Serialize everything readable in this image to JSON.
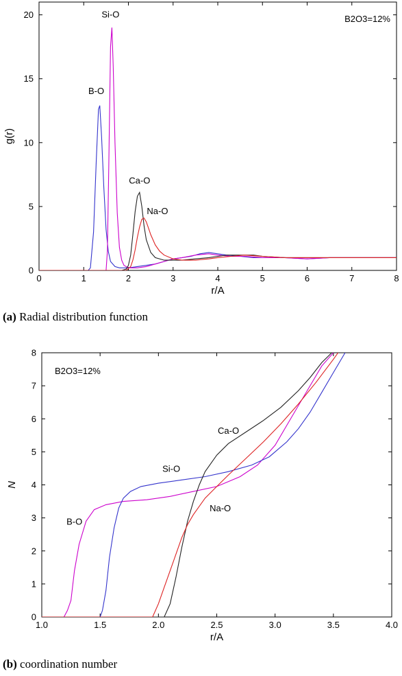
{
  "captions": {
    "a_label": "(a)",
    "a_text": "Radial distribution function",
    "b_label": "(b)",
    "b_text": "coordination number"
  },
  "chart_data": [
    {
      "type": "line",
      "title": "",
      "xlabel": "r/A",
      "ylabel": "g(r)",
      "xlim": [
        0,
        8
      ],
      "ylim": [
        0,
        21
      ],
      "xticks": [
        "0",
        "1",
        "2",
        "3",
        "4",
        "5",
        "6",
        "7",
        "8"
      ],
      "yticks": [
        "0",
        "5",
        "10",
        "15",
        "20"
      ],
      "xtick_values": [
        0,
        1,
        2,
        3,
        4,
        5,
        6,
        7,
        8
      ],
      "ytick_values": [
        0,
        5,
        10,
        15,
        20
      ],
      "grid": false,
      "annotation_box": "B2O3=12%",
      "series": [
        {
          "name": "B-O",
          "color": "#3333cc",
          "x": [
            0,
            1.1,
            1.15,
            1.22,
            1.28,
            1.33,
            1.36,
            1.4,
            1.45,
            1.5,
            1.55,
            1.6,
            1.7,
            1.8,
            2.0,
            2.2,
            2.4,
            2.6,
            2.8,
            3.0,
            3.2,
            3.4,
            3.6,
            3.8,
            4.0,
            4.2,
            4.5,
            4.8,
            5.0,
            5.5,
            6.0,
            6.5,
            7.0,
            7.5,
            8.0
          ],
          "y": [
            0,
            0,
            0.2,
            3.0,
            8.5,
            12.6,
            12.9,
            10.5,
            6.5,
            3.2,
            1.5,
            0.7,
            0.3,
            0.2,
            0.2,
            0.3,
            0.4,
            0.5,
            0.7,
            0.9,
            1.0,
            1.1,
            1.3,
            1.4,
            1.3,
            1.2,
            1.1,
            1.0,
            1.0,
            1.0,
            0.9,
            1.0,
            1.0,
            1.0,
            1.0
          ]
        },
        {
          "name": "Si-O",
          "color": "#cc00cc",
          "x": [
            0,
            1.5,
            1.53,
            1.56,
            1.6,
            1.63,
            1.66,
            1.7,
            1.75,
            1.8,
            1.85,
            1.9,
            2.0,
            2.2,
            2.4,
            2.6,
            2.8,
            3.0,
            3.2,
            3.5,
            3.8,
            4.0,
            4.3,
            4.6,
            5.0,
            5.5,
            6.0,
            6.5,
            7.0,
            7.5,
            8.0
          ],
          "y": [
            0,
            0,
            1.5,
            8.0,
            17.5,
            19.0,
            16.0,
            10.0,
            4.5,
            1.8,
            0.8,
            0.4,
            0.2,
            0.2,
            0.3,
            0.5,
            0.7,
            0.9,
            1.0,
            1.2,
            1.3,
            1.2,
            1.1,
            1.1,
            1.0,
            1.0,
            0.9,
            1.0,
            1.0,
            1.0,
            1.0
          ]
        },
        {
          "name": "Ca-O",
          "color": "#222222",
          "x": [
            0,
            1.85,
            1.95,
            2.0,
            2.05,
            2.1,
            2.15,
            2.2,
            2.25,
            2.3,
            2.35,
            2.4,
            2.5,
            2.6,
            2.8,
            3.0,
            3.2,
            3.5,
            3.8,
            4.0,
            4.2,
            4.5,
            4.8,
            5.0,
            5.5,
            6.0,
            6.5,
            7.0,
            7.5,
            8.0
          ],
          "y": [
            0,
            0,
            0.1,
            0.4,
            1.2,
            2.8,
            4.6,
            5.8,
            6.1,
            5.0,
            3.5,
            2.4,
            1.4,
            1.0,
            0.8,
            0.8,
            0.8,
            0.9,
            1.0,
            1.1,
            1.2,
            1.2,
            1.2,
            1.1,
            1.0,
            1.0,
            1.0,
            1.0,
            1.0,
            1.0
          ]
        },
        {
          "name": "Na-O",
          "color": "#dd2222",
          "x": [
            0,
            1.95,
            2.05,
            2.1,
            2.15,
            2.2,
            2.25,
            2.3,
            2.35,
            2.4,
            2.45,
            2.5,
            2.6,
            2.7,
            2.8,
            3.0,
            3.2,
            3.5,
            3.8,
            4.0,
            4.3,
            4.6,
            5.0,
            5.5,
            6.0,
            6.5,
            7.0,
            7.5,
            8.0
          ],
          "y": [
            0,
            0,
            0.3,
            0.8,
            1.6,
            2.6,
            3.4,
            4.0,
            4.1,
            3.8,
            3.3,
            2.8,
            2.0,
            1.5,
            1.2,
            0.9,
            0.8,
            0.8,
            0.9,
            1.0,
            1.1,
            1.2,
            1.1,
            1.0,
            1.0,
            1.0,
            1.0,
            1.0,
            1.0
          ]
        }
      ],
      "labels": [
        {
          "text": "B-O",
          "x": 1.28,
          "y": 13.8
        },
        {
          "text": "Si-O",
          "x": 1.6,
          "y": 19.8
        },
        {
          "text": "Ca-O",
          "x": 2.25,
          "y": 6.8
        },
        {
          "text": "Na-O",
          "x": 2.65,
          "y": 4.4
        }
      ]
    },
    {
      "type": "line",
      "title": "",
      "xlabel": "r/A",
      "ylabel": "N",
      "xlim": [
        1.0,
        4.0
      ],
      "ylim": [
        0,
        8
      ],
      "xticks": [
        "1.0",
        "1.5",
        "2.0",
        "2.5",
        "3.0",
        "3.5",
        "4.0"
      ],
      "yticks": [
        "0",
        "1",
        "2",
        "3",
        "4",
        "5",
        "6",
        "7",
        "8"
      ],
      "xtick_values": [
        1.0,
        1.5,
        2.0,
        2.5,
        3.0,
        3.5,
        4.0
      ],
      "ytick_values": [
        0,
        1,
        2,
        3,
        4,
        5,
        6,
        7,
        8
      ],
      "grid": false,
      "annotation_box": "B2O3=12%",
      "series": [
        {
          "name": "B-O",
          "color": "#cc00cc",
          "x": [
            1.0,
            1.19,
            1.22,
            1.25,
            1.28,
            1.32,
            1.38,
            1.45,
            1.55,
            1.7,
            1.9,
            2.1,
            2.3,
            2.5,
            2.7,
            2.85,
            3.0,
            3.1,
            3.2,
            3.3,
            3.4,
            3.5
          ],
          "y": [
            0,
            0,
            0.2,
            0.5,
            1.4,
            2.2,
            2.9,
            3.25,
            3.4,
            3.5,
            3.55,
            3.65,
            3.8,
            3.95,
            4.25,
            4.6,
            5.2,
            5.8,
            6.4,
            7.0,
            7.6,
            8.0
          ]
        },
        {
          "name": "Si-O",
          "color": "#3333cc",
          "x": [
            1.0,
            1.5,
            1.52,
            1.55,
            1.58,
            1.62,
            1.66,
            1.7,
            1.76,
            1.85,
            2.0,
            2.2,
            2.4,
            2.6,
            2.8,
            2.95,
            3.1,
            3.2,
            3.3,
            3.4,
            3.5,
            3.6
          ],
          "y": [
            0,
            0,
            0.2,
            0.8,
            1.8,
            2.7,
            3.3,
            3.6,
            3.8,
            3.95,
            4.05,
            4.15,
            4.25,
            4.4,
            4.6,
            4.85,
            5.3,
            5.7,
            6.2,
            6.8,
            7.4,
            8.0
          ]
        },
        {
          "name": "Ca-O",
          "color": "#222222",
          "x": [
            1.0,
            2.05,
            2.1,
            2.15,
            2.2,
            2.25,
            2.3,
            2.35,
            2.4,
            2.5,
            2.6,
            2.75,
            2.9,
            3.05,
            3.2,
            3.3,
            3.4,
            3.5
          ],
          "y": [
            0,
            0,
            0.4,
            1.2,
            2.1,
            2.9,
            3.5,
            4.0,
            4.4,
            4.9,
            5.25,
            5.6,
            5.95,
            6.35,
            6.85,
            7.25,
            7.7,
            8.05
          ]
        },
        {
          "name": "Na-O",
          "color": "#dd2222",
          "x": [
            1.0,
            1.95,
            2.0,
            2.05,
            2.1,
            2.15,
            2.2,
            2.25,
            2.3,
            2.4,
            2.5,
            2.6,
            2.75,
            2.9,
            3.05,
            3.2,
            3.35,
            3.5,
            3.55
          ],
          "y": [
            0,
            0,
            0.4,
            0.9,
            1.4,
            1.9,
            2.4,
            2.8,
            3.1,
            3.6,
            3.95,
            4.3,
            4.8,
            5.3,
            5.85,
            6.45,
            7.1,
            7.8,
            8.05
          ]
        }
      ],
      "labels": [
        {
          "text": "B-O",
          "x": 1.28,
          "y": 2.8
        },
        {
          "text": "Si-O",
          "x": 2.11,
          "y": 4.4
        },
        {
          "text": "Ca-O",
          "x": 2.6,
          "y": 5.55
        },
        {
          "text": "Na-O",
          "x": 2.53,
          "y": 3.2
        }
      ]
    }
  ]
}
